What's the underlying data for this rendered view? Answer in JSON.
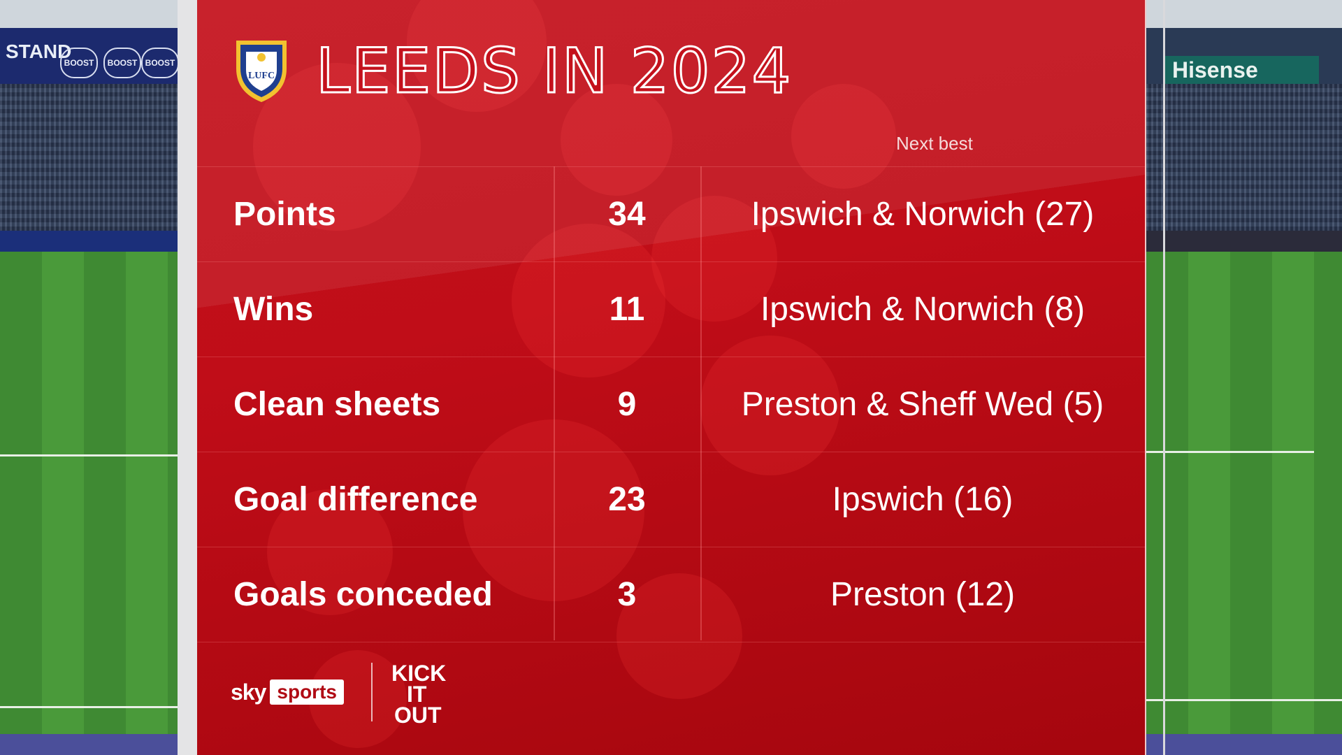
{
  "background": {
    "left_banner_text": "STAND",
    "boost_badges": [
      "BOOST",
      "BOOST",
      "BOOST"
    ],
    "right_sponsor": "Hisense"
  },
  "graphic": {
    "title": "LEEDS IN 2024",
    "crest_text": "LUFC",
    "next_best_header": "Next best",
    "rows": [
      {
        "label": "Points",
        "value": "34",
        "next_best": "Ipswich & Norwich (27)"
      },
      {
        "label": "Wins",
        "value": "11",
        "next_best": "Ipswich & Norwich (8)"
      },
      {
        "label": "Clean sheets",
        "value": "9",
        "next_best": "Preston & Sheff Wed (5)"
      },
      {
        "label": "Goal difference",
        "value": "23",
        "next_best": "Ipswich (16)"
      },
      {
        "label": "Goals conceded",
        "value": "3",
        "next_best": "Preston (12)"
      }
    ]
  },
  "branding": {
    "sky": "sky",
    "sports": "sports",
    "kick_it_out": [
      "KICK",
      "IT",
      "OUT"
    ]
  },
  "colors": {
    "panel_red": "#c4111c",
    "crest_blue": "#1f3f8f",
    "crest_yellow": "#f2c230"
  }
}
